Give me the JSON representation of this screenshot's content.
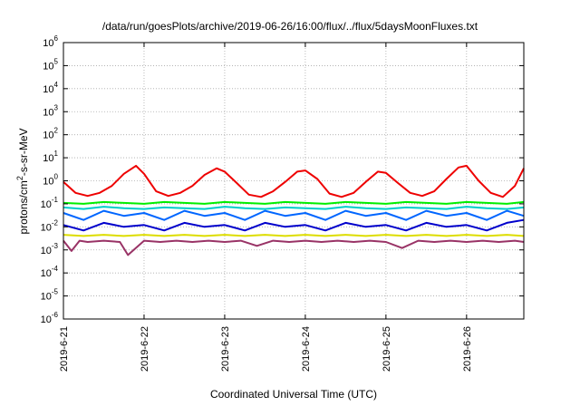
{
  "chart_data": {
    "type": "line",
    "title": "/data/run/goesPlots/archive/2019-06-26/16:00/flux/../flux/5daysMoonFluxes.txt",
    "xlabel": "Coordinated Universal Time (UTC)",
    "ylabel": {
      "pre": "protons/cm",
      "sup": "2",
      "post": "-s-sr-MeV"
    },
    "y_scale": "log",
    "ylim": [
      1e-06,
      1000000.0
    ],
    "xlim": [
      "2019-06-21 00:00",
      "2019-06-26 17:00"
    ],
    "x_ticks": [
      "2019-6-21",
      "2019-6-22",
      "2019-6-23",
      "2019-6-24",
      "2019-6-25",
      "2019-6-26"
    ],
    "y_ticks": [
      {
        "base": "10",
        "exp": "-6"
      },
      {
        "base": "10",
        "exp": "-5"
      },
      {
        "base": "10",
        "exp": "-4"
      },
      {
        "base": "10",
        "exp": "-3"
      },
      {
        "base": "10",
        "exp": "-2"
      },
      {
        "base": "10",
        "exp": "-1"
      },
      {
        "base": "10",
        "exp": "0"
      },
      {
        "base": "10",
        "exp": "1"
      },
      {
        "base": "10",
        "exp": "2"
      },
      {
        "base": "10",
        "exp": "3"
      },
      {
        "base": "10",
        "exp": "4"
      },
      {
        "base": "10",
        "exp": "5"
      },
      {
        "base": "10",
        "exp": "6"
      }
    ],
    "grid": true,
    "series": [
      {
        "color": "#ee0000",
        "x": [
          0,
          0.15,
          0.3,
          0.45,
          0.6,
          0.75,
          0.9,
          1.0,
          1.15,
          1.3,
          1.45,
          1.6,
          1.75,
          1.9,
          2.0,
          2.15,
          2.3,
          2.45,
          2.6,
          2.75,
          2.9,
          3.0,
          3.15,
          3.3,
          3.45,
          3.6,
          3.75,
          3.9,
          4.0,
          4.15,
          4.3,
          4.45,
          4.6,
          4.75,
          4.9,
          5.0,
          5.15,
          5.3,
          5.45,
          5.6,
          5.71
        ],
        "y": [
          0.9,
          0.3,
          0.22,
          0.3,
          0.6,
          2.0,
          4.5,
          2.0,
          0.35,
          0.22,
          0.3,
          0.6,
          1.8,
          3.5,
          2.5,
          0.8,
          0.25,
          0.2,
          0.35,
          0.9,
          2.5,
          2.8,
          1.2,
          0.28,
          0.2,
          0.3,
          0.9,
          2.5,
          2.2,
          0.8,
          0.3,
          0.22,
          0.35,
          1.2,
          3.8,
          4.5,
          1.0,
          0.3,
          0.2,
          0.6,
          3.5
        ]
      },
      {
        "color": "#00ee00",
        "x": [
          0,
          0.25,
          0.5,
          0.75,
          1.0,
          1.25,
          1.5,
          1.75,
          2.0,
          2.25,
          2.5,
          2.75,
          3.0,
          3.25,
          3.5,
          3.75,
          4.0,
          4.25,
          4.5,
          4.75,
          5.0,
          5.25,
          5.5,
          5.71
        ],
        "y": [
          0.11,
          0.1,
          0.12,
          0.11,
          0.1,
          0.12,
          0.11,
          0.1,
          0.12,
          0.11,
          0.1,
          0.12,
          0.11,
          0.1,
          0.12,
          0.11,
          0.1,
          0.12,
          0.11,
          0.1,
          0.12,
          0.11,
          0.1,
          0.12
        ]
      },
      {
        "color": "#00cccc",
        "x": [
          0,
          0.25,
          0.5,
          0.75,
          1.0,
          1.25,
          1.5,
          1.75,
          2.0,
          2.25,
          2.5,
          2.75,
          3.0,
          3.25,
          3.5,
          3.75,
          4.0,
          4.25,
          4.5,
          4.75,
          5.0,
          5.25,
          5.5,
          5.71
        ],
        "y": [
          0.07,
          0.06,
          0.075,
          0.065,
          0.06,
          0.07,
          0.065,
          0.06,
          0.075,
          0.065,
          0.06,
          0.07,
          0.065,
          0.06,
          0.075,
          0.065,
          0.06,
          0.07,
          0.065,
          0.06,
          0.075,
          0.065,
          0.06,
          0.07
        ]
      },
      {
        "color": "#0066ff",
        "x": [
          0,
          0.25,
          0.5,
          0.75,
          1.0,
          1.25,
          1.5,
          1.75,
          2.0,
          2.25,
          2.5,
          2.75,
          3.0,
          3.25,
          3.5,
          3.75,
          4.0,
          4.25,
          4.5,
          4.75,
          5.0,
          5.25,
          5.5,
          5.71
        ],
        "y": [
          0.04,
          0.02,
          0.05,
          0.03,
          0.04,
          0.02,
          0.05,
          0.03,
          0.04,
          0.02,
          0.05,
          0.03,
          0.04,
          0.02,
          0.05,
          0.03,
          0.04,
          0.02,
          0.05,
          0.03,
          0.04,
          0.02,
          0.05,
          0.03
        ]
      },
      {
        "color": "#0000cc",
        "x": [
          0,
          0.25,
          0.5,
          0.75,
          1.0,
          1.25,
          1.5,
          1.75,
          2.0,
          2.25,
          2.5,
          2.75,
          3.0,
          3.25,
          3.5,
          3.75,
          4.0,
          4.25,
          4.5,
          4.75,
          5.0,
          5.25,
          5.5,
          5.71
        ],
        "y": [
          0.012,
          0.007,
          0.015,
          0.01,
          0.012,
          0.007,
          0.015,
          0.01,
          0.012,
          0.007,
          0.015,
          0.01,
          0.012,
          0.007,
          0.015,
          0.01,
          0.012,
          0.007,
          0.015,
          0.01,
          0.012,
          0.007,
          0.015,
          0.02
        ]
      },
      {
        "color": "#dddd00",
        "x": [
          0,
          0.25,
          0.5,
          0.75,
          1.0,
          1.25,
          1.5,
          1.75,
          2.0,
          2.25,
          2.5,
          2.75,
          3.0,
          3.25,
          3.5,
          3.75,
          4.0,
          4.25,
          4.5,
          4.75,
          5.0,
          5.25,
          5.5,
          5.71
        ],
        "y": [
          0.0045,
          0.004,
          0.0045,
          0.004,
          0.0045,
          0.004,
          0.0045,
          0.004,
          0.0045,
          0.004,
          0.0045,
          0.004,
          0.0045,
          0.004,
          0.0045,
          0.004,
          0.0045,
          0.004,
          0.0045,
          0.004,
          0.0045,
          0.004,
          0.0045,
          0.004
        ]
      },
      {
        "color": "#993366",
        "x": [
          0,
          0.1,
          0.2,
          0.3,
          0.5,
          0.7,
          0.8,
          1.0,
          1.2,
          1.4,
          1.6,
          1.8,
          2.0,
          2.2,
          2.4,
          2.6,
          2.8,
          3.0,
          3.2,
          3.4,
          3.6,
          3.8,
          4.0,
          4.2,
          4.4,
          4.6,
          4.8,
          5.0,
          5.2,
          5.4,
          5.6,
          5.71
        ],
        "y": [
          0.0025,
          0.0009,
          0.0025,
          0.0022,
          0.0025,
          0.0022,
          0.0006,
          0.0025,
          0.0022,
          0.0025,
          0.0022,
          0.0025,
          0.0022,
          0.0025,
          0.0015,
          0.0025,
          0.0022,
          0.0025,
          0.0022,
          0.0025,
          0.0022,
          0.0025,
          0.0022,
          0.0012,
          0.0025,
          0.0022,
          0.0025,
          0.0022,
          0.0025,
          0.0022,
          0.0025,
          0.0022
        ]
      }
    ]
  }
}
